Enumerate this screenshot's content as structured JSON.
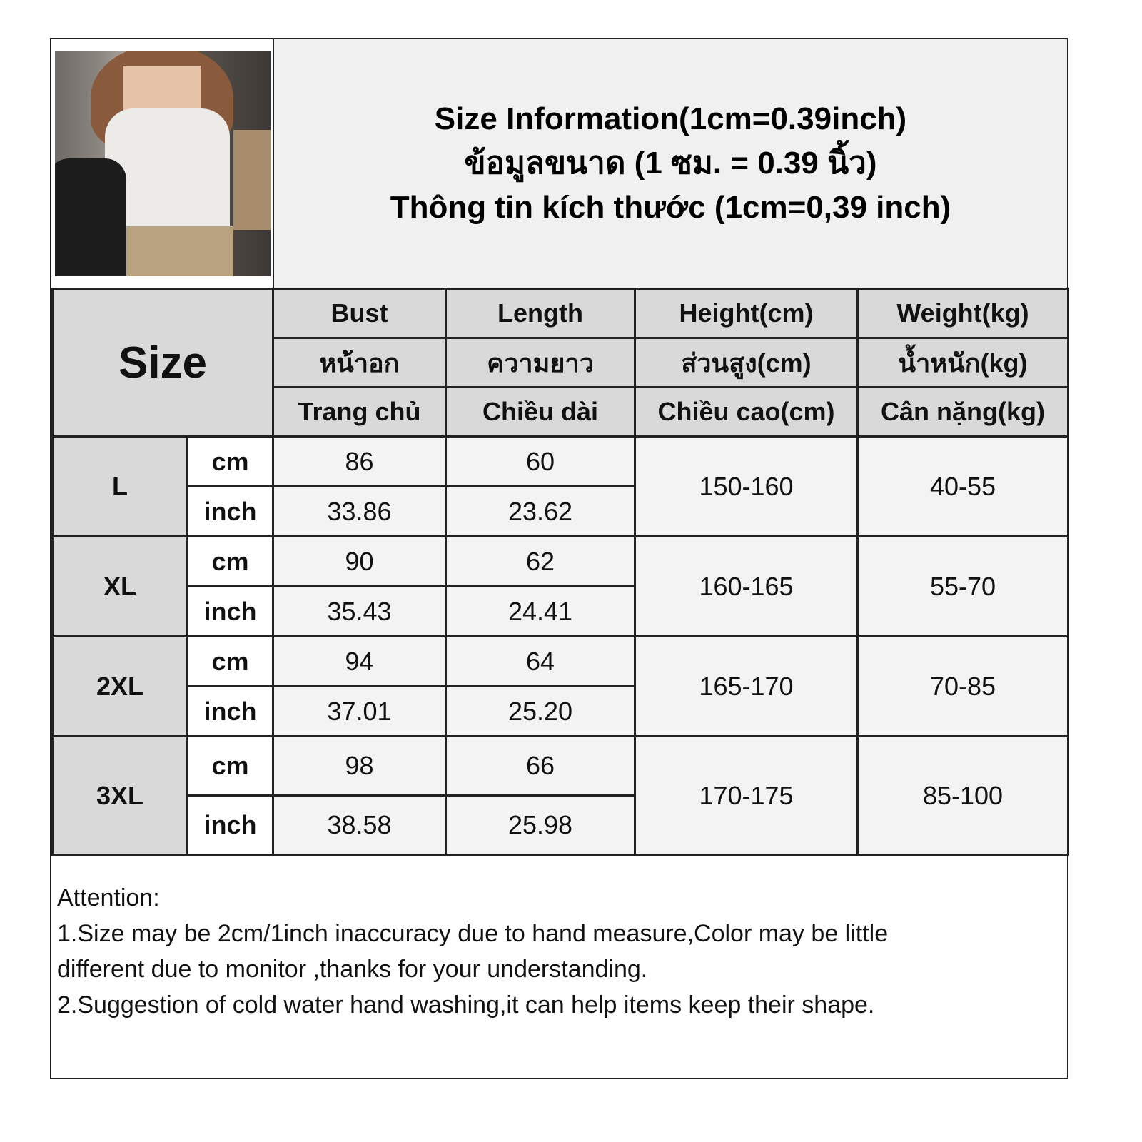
{
  "title_lines": [
    "Size Information(1cm=0.39inch)",
    "ข้อมูลขนาด (1 ซม. = 0.39 นิ้ว)",
    "Thông tin kích thước (1cm=0,39 inch)"
  ],
  "size_header": "Size",
  "columns": [
    {
      "en": "Bust",
      "th": "หน้าอก",
      "vi": "Trang chủ"
    },
    {
      "en": "Length",
      "th": "ความยาว",
      "vi": "Chiều dài"
    },
    {
      "en": "Height(cm)",
      "th": "ส่วนสูง(cm)",
      "vi": "Chiều cao(cm)"
    },
    {
      "en": "Weight(kg)",
      "th": "น้ำหนัก(kg)",
      "vi": "Cân nặng(kg)"
    }
  ],
  "units": {
    "cm": "cm",
    "inch": "inch"
  },
  "rows": [
    {
      "size": "L",
      "bust_cm": "86",
      "bust_inch": "33.86",
      "length_cm": "60",
      "length_inch": "23.62",
      "height": "150-160",
      "weight": "40-55"
    },
    {
      "size": "XL",
      "bust_cm": "90",
      "bust_inch": "35.43",
      "length_cm": "62",
      "length_inch": "24.41",
      "height": "160-165",
      "weight": "55-70"
    },
    {
      "size": "2XL",
      "bust_cm": "94",
      "bust_inch": "37.01",
      "length_cm": "64",
      "length_inch": "25.20",
      "height": "165-170",
      "weight": "70-85"
    },
    {
      "size": "3XL",
      "bust_cm": "98",
      "bust_inch": "38.58",
      "length_cm": "66",
      "length_inch": "25.98",
      "height": "170-175",
      "weight": "85-100"
    }
  ],
  "attention": {
    "heading": "Attention:",
    "line1": "1.Size may be 2cm/1inch inaccuracy due to hand measure,Color may be little",
    "line1b": "different due to monitor ,thanks for your understanding.",
    "line2": "2.Suggestion of cold water hand washing,it can help items keep their shape."
  }
}
